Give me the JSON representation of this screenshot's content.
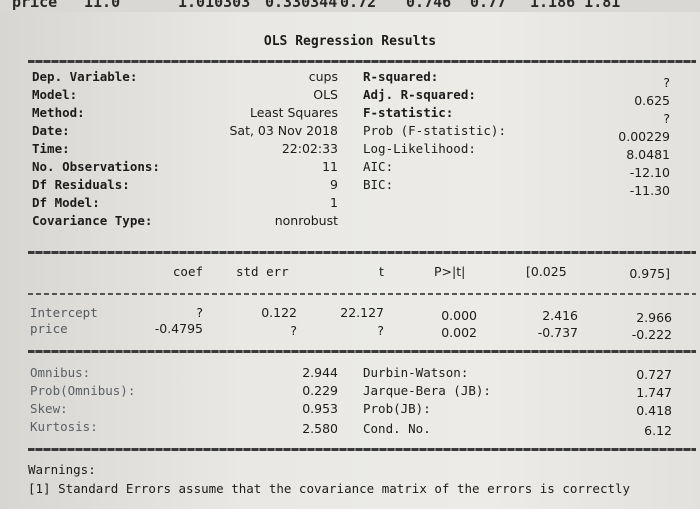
{
  "top_cut": [
    "price",
    "11.0",
    "1.010303",
    "0.330344",
    "0.72",
    "0.746",
    "0.77",
    "1.186 1.81"
  ],
  "title": "OLS Regression Results",
  "summary": {
    "left": [
      {
        "label": "Dep. Variable:",
        "value": "cups"
      },
      {
        "label": "Model:",
        "value": "OLS"
      },
      {
        "label": "Method:",
        "value": "Least Squares"
      },
      {
        "label": "Date:",
        "value": "Sat, 03 Nov 2018"
      },
      {
        "label": "Time:",
        "value": "22:02:33"
      },
      {
        "label": "No. Observations:",
        "value": "11"
      },
      {
        "label": "Df Residuals:",
        "value": "9"
      },
      {
        "label": "Df Model:",
        "value": "1"
      },
      {
        "label": "Covariance Type:",
        "value": "nonrobust"
      }
    ],
    "right": [
      {
        "label": "R-squared:",
        "value": "?"
      },
      {
        "label": "Adj. R-squared:",
        "value": "0.625"
      },
      {
        "label": "F-statistic:",
        "value": "?"
      },
      {
        "label": "Prob (F-statistic):",
        "value": "0.00229"
      },
      {
        "label": "Log-Likelihood:",
        "value": "8.0481"
      },
      {
        "label": "AIC:",
        "value": "-12.10"
      },
      {
        "label": "BIC:",
        "value": "-11.30"
      }
    ]
  },
  "coef_table": {
    "headers": [
      "coef",
      "std err",
      "t",
      "P>|t|",
      "[0.025",
      "0.975]"
    ],
    "rows": [
      {
        "name": "Intercept",
        "coef": "?",
        "std_err": "0.122",
        "t": "22.127",
        "p": "0.000",
        "ci_low": "2.416",
        "ci_high": "2.966"
      },
      {
        "name": "price",
        "coef": "-0.4795",
        "std_err": "?",
        "t": "?",
        "p": "0.002",
        "ci_low": "-0.737",
        "ci_high": "-0.222"
      }
    ]
  },
  "diagnostics": {
    "left": [
      {
        "label": "Omnibus:",
        "value": "2.944"
      },
      {
        "label": "Prob(Omnibus):",
        "value": "0.229"
      },
      {
        "label": "Skew:",
        "value": "0.953"
      },
      {
        "label": "Kurtosis:",
        "value": "2.580"
      }
    ],
    "right": [
      {
        "label": "Durbin-Watson:",
        "value": "0.727"
      },
      {
        "label": "Jarque-Bera (JB):",
        "value": "1.747"
      },
      {
        "label": "Prob(JB):",
        "value": "0.418"
      },
      {
        "label": "Cond. No.",
        "value": "6.12"
      }
    ]
  },
  "warnings": {
    "heading": "Warnings:",
    "lines": [
      "[1] Standard Errors assume that the covariance matrix of the errors is correctly"
    ]
  }
}
